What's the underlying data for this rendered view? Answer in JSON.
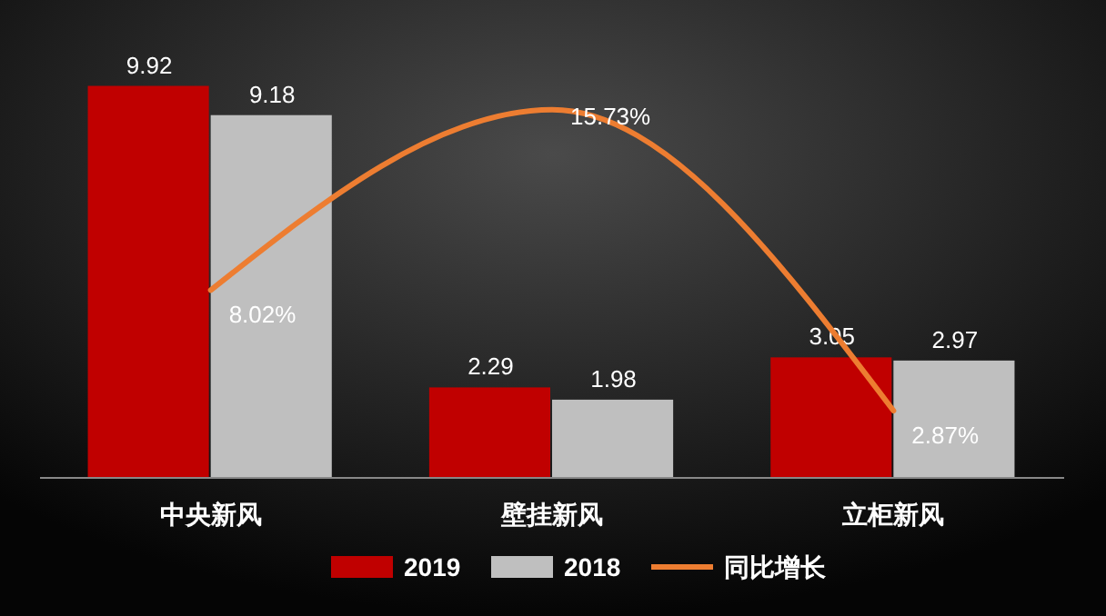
{
  "chart_data": {
    "type": "bar",
    "categories": [
      "中央新风",
      "壁挂新风",
      "立柜新风"
    ],
    "legend": "bottom",
    "grid": false,
    "series": [
      {
        "name": "2019",
        "color": "#c00000",
        "values": [
          9.92,
          2.29,
          3.05
        ],
        "value_labels": [
          "9.92",
          "2.29",
          "3.05"
        ]
      },
      {
        "name": "2018",
        "color": "#bfbfbf",
        "values": [
          9.18,
          1.98,
          2.97
        ],
        "value_labels": [
          "9.18",
          "1.98",
          "2.97"
        ]
      },
      {
        "name": "同比增长",
        "type": "line",
        "axis": "y2",
        "color": "#ed7d31",
        "values": [
          8.02,
          15.73,
          2.87
        ],
        "value_labels": [
          "8.02%",
          "15.73%",
          "2.87%"
        ]
      }
    ]
  }
}
